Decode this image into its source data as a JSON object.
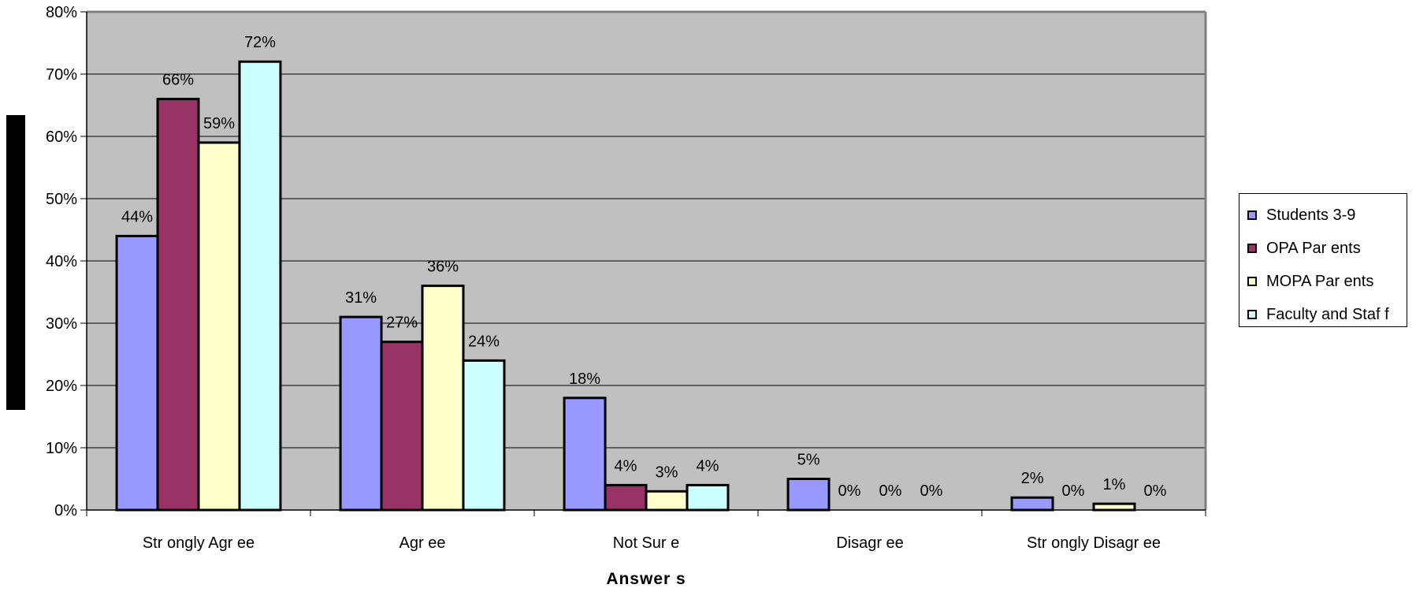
{
  "chart_data": {
    "type": "bar",
    "title": "",
    "xlabel": "Answer s",
    "ylabel": "",
    "ylim": [
      0,
      80
    ],
    "y_ticks": [
      "0%",
      "10%",
      "20%",
      "30%",
      "40%",
      "50%",
      "60%",
      "70%",
      "80%"
    ],
    "categories": [
      "Str ongly Agr ee",
      "Agr ee",
      "Not Sur e",
      "Disagr ee",
      "Str ongly Disagr ee"
    ],
    "series": [
      {
        "name": "Students 3-9",
        "color": "#9999ff",
        "values": [
          44,
          31,
          18,
          5,
          2
        ],
        "labels": [
          "44%",
          "31%",
          "18%",
          "5%",
          "2%"
        ]
      },
      {
        "name": "OPA Par ents",
        "color": "#993366",
        "values": [
          66,
          27,
          4,
          0,
          0
        ],
        "labels": [
          "66%",
          "27%",
          "4%",
          "0%",
          "0%"
        ]
      },
      {
        "name": "MOPA Par ents",
        "color": "#ffffcc",
        "values": [
          59,
          36,
          3,
          0,
          1
        ],
        "labels": [
          "59%",
          "36%",
          "3%",
          "0%",
          "1%"
        ]
      },
      {
        "name": "Faculty and Staf f",
        "color": "#ccffff",
        "values": [
          72,
          24,
          4,
          0,
          0
        ],
        "labels": [
          "72%",
          "24%",
          "4%",
          "0%",
          "0%"
        ]
      }
    ],
    "grid": true,
    "plot_background": "#c0c0c0",
    "legend_position": "right"
  }
}
